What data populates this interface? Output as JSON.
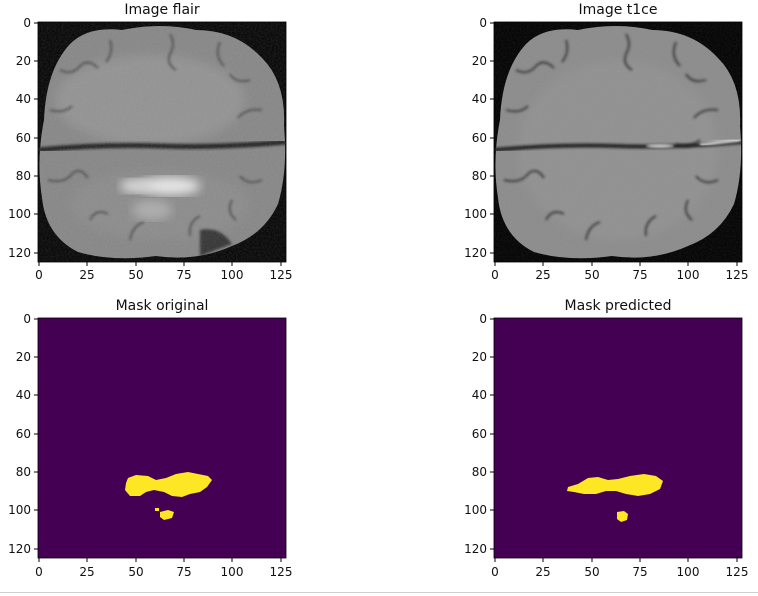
{
  "panels": [
    {
      "id": "flair",
      "title": "Image flair",
      "kind": "mri-grayscale",
      "x_ticks": [
        "0",
        "25",
        "50",
        "75",
        "100",
        "125"
      ],
      "y_ticks": [
        "0",
        "20",
        "40",
        "60",
        "80",
        "100",
        "120"
      ],
      "image_size": [
        128,
        128
      ]
    },
    {
      "id": "t1ce",
      "title": "Image t1ce",
      "kind": "mri-grayscale",
      "x_ticks": [
        "0",
        "25",
        "50",
        "75",
        "100",
        "125"
      ],
      "y_ticks": [
        "0",
        "20",
        "40",
        "60",
        "80",
        "100",
        "120"
      ],
      "image_size": [
        128,
        128
      ]
    },
    {
      "id": "mask-original",
      "title": "Mask original",
      "kind": "mask",
      "x_ticks": [
        "0",
        "25",
        "50",
        "75",
        "100",
        "125"
      ],
      "y_ticks": [
        "0",
        "20",
        "40",
        "60",
        "80",
        "100",
        "120"
      ],
      "image_size": [
        128,
        128
      ]
    },
    {
      "id": "mask-predicted",
      "title": "Mask predicted",
      "kind": "mask",
      "x_ticks": [
        "0",
        "25",
        "50",
        "75",
        "100",
        "125"
      ],
      "y_ticks": [
        "0",
        "20",
        "40",
        "60",
        "80",
        "100",
        "120"
      ],
      "image_size": [
        128,
        128
      ]
    }
  ],
  "colors": {
    "mask_background": "#440154",
    "mask_foreground": "#fde725",
    "mri_background": "#000000"
  }
}
